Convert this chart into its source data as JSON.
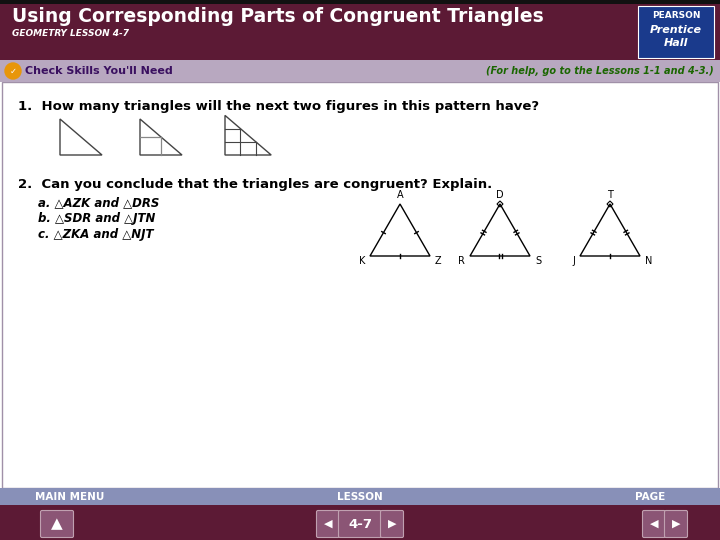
{
  "title": "Using Corresponding Parts of Congruent Triangles",
  "subtitle": "GEOMETRY LESSON 4-7",
  "header_bg": "#5C1A35",
  "header_text_color": "#FFFFFF",
  "banner_bg": "#B8A8C0",
  "banner_text": "Check Skills You'll Need",
  "banner_right_text": "(For help, go to the Lessons 1-1 and 4-3.)",
  "body_bg": "#FFFFFF",
  "q1_text": "1.  How many triangles will the next two figures in this pattern have?",
  "q2_text": "2.  Can you conclude that the triangles are congruent? Explain.",
  "q2a_text": "a. △AZK and △DRS",
  "q2b_text": "b. △SDR and △JTN",
  "q2c_text": "c. △ZKA and △NJT",
  "footer_label_bg": "#8890B8",
  "footer_btn_bg": "#5C1A35",
  "footer_labels": [
    "MAIN MENU",
    "LESSON",
    "PAGE"
  ],
  "footer_page": "4-7",
  "pearson_box_color": "#1A3A8C",
  "pearson_text1": "PEARSON",
  "pearson_text2": "Prentice",
  "pearson_text3": "Hall",
  "btn_color": "#8B5575"
}
